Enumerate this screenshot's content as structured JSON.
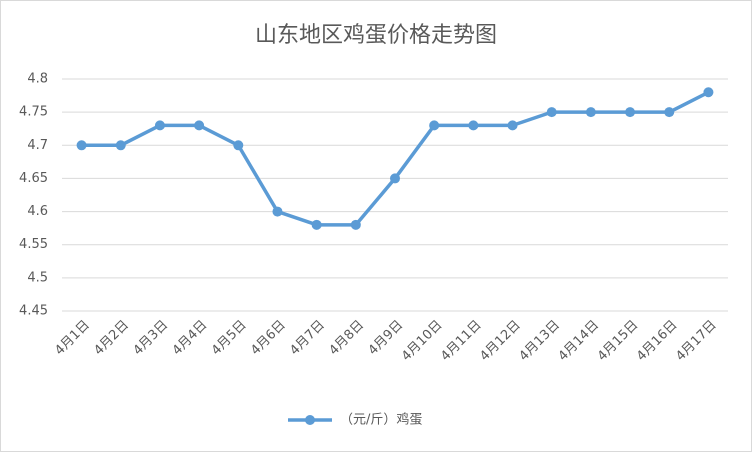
{
  "chart_data": {
    "type": "line",
    "title": "山东地区鸡蛋价格走势图",
    "categories": [
      "4月1日",
      "4月2日",
      "4月3日",
      "4月4日",
      "4月5日",
      "4月6日",
      "4月7日",
      "4月8日",
      "4月9日",
      "4月10日",
      "4月11日",
      "4月12日",
      "4月13日",
      "4月14日",
      "4月15日",
      "4月16日",
      "4月17日"
    ],
    "series": [
      {
        "name": "（元/斤）鸡蛋",
        "color": "#5b9bd5",
        "values": [
          4.7,
          4.7,
          4.73,
          4.73,
          4.7,
          4.6,
          4.58,
          4.58,
          4.65,
          4.73,
          4.73,
          4.73,
          4.75,
          4.75,
          4.75,
          4.75,
          4.78
        ]
      }
    ],
    "ylim": [
      4.45,
      4.8
    ],
    "yticks": [
      4.45,
      4.5,
      4.55,
      4.6,
      4.65,
      4.7,
      4.75,
      4.8
    ],
    "grid": true,
    "legend": "bottom"
  }
}
